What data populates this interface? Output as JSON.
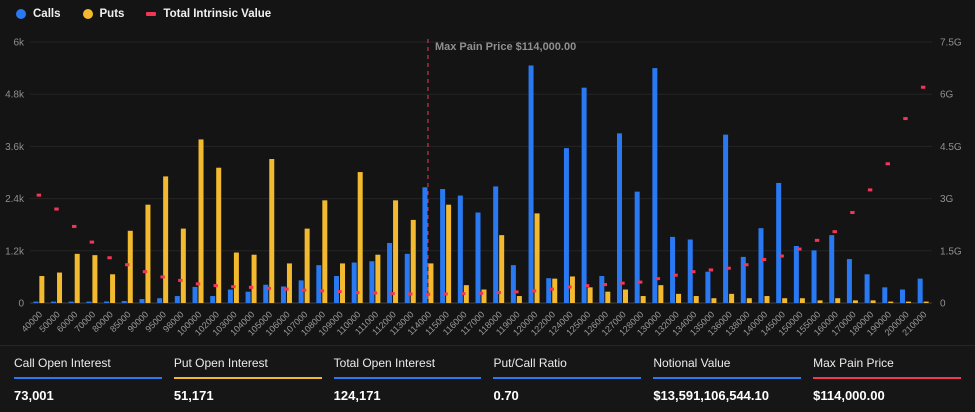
{
  "page": {
    "background": "#141414"
  },
  "colors": {
    "calls_blue": "#2979f2",
    "puts_yellow": "#f3ba2f",
    "intrinsic_pink": "#f23655",
    "grid": "#252525",
    "axis_line": "#3f3f3f"
  },
  "legend": {
    "items": [
      {
        "label": "Calls",
        "color": "#2979f2",
        "marker": "circle"
      },
      {
        "label": "Puts",
        "color": "#f3ba2f",
        "marker": "circle"
      },
      {
        "label": "Total Intrinsic Value",
        "color": "#f23655",
        "marker": "dash"
      }
    ]
  },
  "annotation": {
    "label": "Max Pain Price $114,000.00",
    "strike": "114000",
    "color": "#f23655"
  },
  "chart_data": {
    "type": "bar",
    "title": "",
    "legend_position": "top-left",
    "grid": true,
    "categories": [
      "40000",
      "50000",
      "60000",
      "70000",
      "80000",
      "85000",
      "90000",
      "95000",
      "98000",
      "100000",
      "102000",
      "103000",
      "104000",
      "105000",
      "106000",
      "107000",
      "108000",
      "109000",
      "110000",
      "111000",
      "112000",
      "113000",
      "114000",
      "115000",
      "116000",
      "117000",
      "118000",
      "119000",
      "120000",
      "122000",
      "124000",
      "125000",
      "126000",
      "127000",
      "128000",
      "130000",
      "132000",
      "134000",
      "135000",
      "136000",
      "138000",
      "140000",
      "145000",
      "150000",
      "155000",
      "160000",
      "170000",
      "180000",
      "190000",
      "200000",
      "210000"
    ],
    "series": [
      {
        "name": "Calls",
        "type": "bar",
        "axis": "left",
        "color": "#2979f2",
        "values": [
          10,
          15,
          25,
          25,
          35,
          45,
          90,
          110,
          160,
          370,
          160,
          310,
          260,
          420,
          380,
          520,
          870,
          620,
          930,
          960,
          1380,
          1130,
          2660,
          2620,
          2470,
          2080,
          2680,
          870,
          5460,
          570,
          3560,
          4950,
          620,
          3900,
          2560,
          5400,
          1520,
          1460,
          720,
          3870,
          1060,
          1720,
          2760,
          1310,
          1210,
          1560,
          1010,
          660,
          360,
          310,
          560
        ]
      },
      {
        "name": "Puts",
        "type": "bar",
        "axis": "left",
        "color": "#f3ba2f",
        "values": [
          620,
          700,
          1130,
          1100,
          660,
          1660,
          2260,
          2910,
          1710,
          3760,
          3110,
          1160,
          1110,
          3310,
          910,
          1710,
          2360,
          910,
          3010,
          1110,
          2360,
          1910,
          910,
          2260,
          410,
          310,
          1560,
          160,
          2060,
          560,
          610,
          360,
          260,
          310,
          160,
          410,
          210,
          160,
          110,
          210,
          110,
          160,
          110,
          110,
          60,
          110,
          60,
          60,
          30,
          30,
          30
        ]
      },
      {
        "name": "Total Intrinsic Value",
        "type": "scatter",
        "axis": "right",
        "color": "#f23655",
        "values": [
          3.1,
          2.7,
          2.2,
          1.75,
          1.3,
          1.1,
          0.9,
          0.75,
          0.65,
          0.55,
          0.5,
          0.47,
          0.45,
          0.42,
          0.4,
          0.37,
          0.35,
          0.33,
          0.3,
          0.29,
          0.27,
          0.26,
          0.25,
          0.26,
          0.27,
          0.28,
          0.3,
          0.32,
          0.35,
          0.4,
          0.46,
          0.5,
          0.53,
          0.57,
          0.6,
          0.7,
          0.8,
          0.9,
          0.95,
          1.0,
          1.1,
          1.25,
          1.35,
          1.55,
          1.8,
          2.05,
          2.6,
          3.25,
          4.0,
          5.3,
          6.2
        ]
      }
    ],
    "left_axis": {
      "max": 6000,
      "ticks": [
        "0",
        "1.2k",
        "2.4k",
        "3.6k",
        "4.8k",
        "6k"
      ]
    },
    "right_axis": {
      "max": 7.5,
      "ticks": [
        "0",
        "1.5G",
        "3G",
        "4.5G",
        "6G",
        "7.5G"
      ]
    }
  },
  "stats": [
    {
      "label": "Call Open Interest",
      "value": "73,001",
      "accent": "#2979f2"
    },
    {
      "label": "Put Open Interest",
      "value": "51,171",
      "accent": "#f3ba2f"
    },
    {
      "label": "Total Open Interest",
      "value": "124,171",
      "accent": "#2979f2"
    },
    {
      "label": "Put/Call Ratio",
      "value": "0.70",
      "accent": "#2979f2"
    },
    {
      "label": "Notional Value",
      "value": "$13,591,106,544.10",
      "accent": "#2979f2"
    },
    {
      "label": "Max Pain Price",
      "value": "$114,000.00",
      "accent": "#f23655"
    }
  ]
}
